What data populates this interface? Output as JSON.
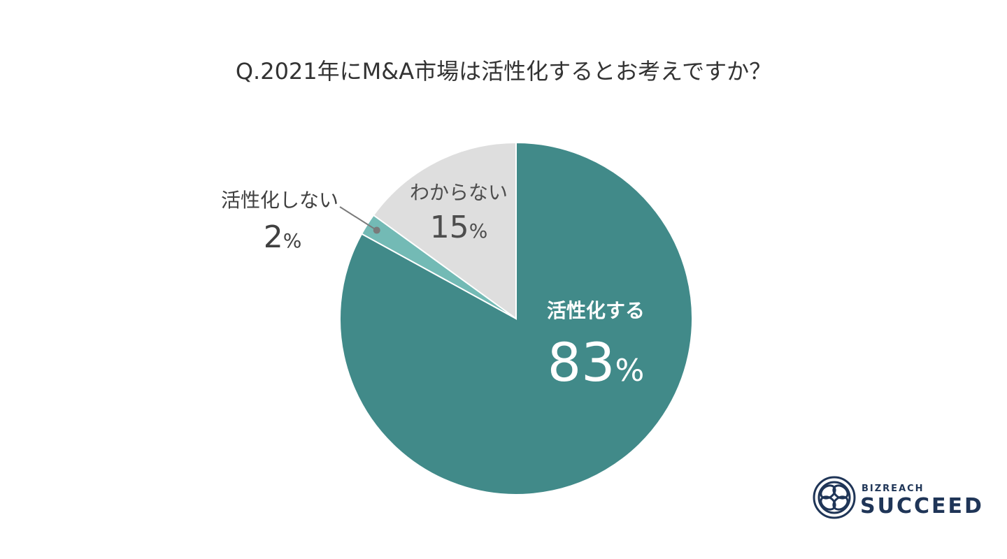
{
  "chart_data": {
    "type": "pie",
    "title": "Q.2021年にM&A市場は活性化するとお考えですか？",
    "unit": "%",
    "start": "12 o'clock",
    "direction": "clockwise",
    "slices": [
      {
        "label": "活性化する",
        "value": 83,
        "color": "#418a89",
        "label_color": "#ffffff",
        "label_placement": "inside"
      },
      {
        "label": "活性化しない",
        "value": 2,
        "color": "#73bab5",
        "label_color": "#404040",
        "label_placement": "outside-left"
      },
      {
        "label": "わからない",
        "value": 15,
        "color": "#dedede",
        "label_color": "#4d4d4d",
        "label_placement": "inside"
      }
    ],
    "leader_line_color": "#7a7a7a"
  },
  "logo": {
    "top_text": "BIZREACH",
    "bottom_text": "SUCCEED",
    "color": "#1f3557",
    "icon": "interlocking-loops-icon"
  }
}
